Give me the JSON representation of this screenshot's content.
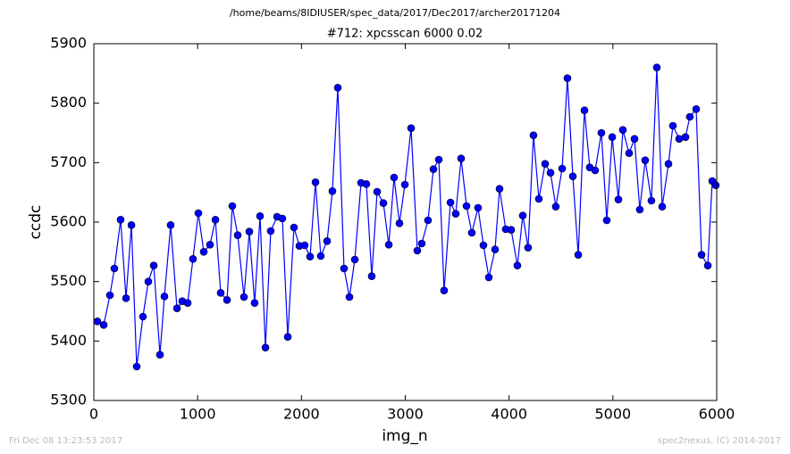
{
  "chart_data": {
    "type": "line",
    "suptitle": "/home/beams/8IDIUSER/spec_data/2017/Dec2017/archer20171204",
    "title": "#712: xpcsscan 6000 0.02",
    "xlabel": "img_n",
    "ylabel": "ccdc",
    "footer_left": "Fri Dec 08 13:23:53 2017",
    "footer_right": "spec2nexus, (C) 2014-2017",
    "xlim": [
      0,
      6000
    ],
    "xticks": [
      0,
      1000,
      2000,
      3000,
      4000,
      5000,
      6000
    ],
    "ylim": [
      5300,
      5900
    ],
    "yticks": [
      5300,
      5400,
      5500,
      5600,
      5700,
      5800,
      5900
    ],
    "color": "#0000ff",
    "x": [
      34,
      95,
      155,
      198,
      258,
      310,
      362,
      413,
      473,
      525,
      577,
      637,
      680,
      740,
      801,
      852,
      904,
      955,
      1007,
      1059,
      1119,
      1171,
      1222,
      1283,
      1334,
      1386,
      1446,
      1498,
      1549,
      1601,
      1653,
      1704,
      1765,
      1816,
      1868,
      1928,
      1980,
      2031,
      2083,
      2135,
      2186,
      2247,
      2298,
      2350,
      2410,
      2462,
      2514,
      2574,
      2625,
      2677,
      2729,
      2789,
      2841,
      2892,
      2944,
      2996,
      3056,
      3116,
      3159,
      3219,
      3271,
      3323,
      3374,
      3435,
      3486,
      3538,
      3590,
      3641,
      3701,
      3753,
      3805,
      3865,
      3908,
      3968,
      4020,
      4080,
      4132,
      4183,
      4235,
      4287,
      4347,
      4399,
      4450,
      4511,
      4562,
      4614,
      4666,
      4726,
      4777,
      4829,
      4889,
      4941,
      4993,
      5053,
      5096,
      5156,
      5208,
      5259,
      5311,
      5371,
      5423,
      5475,
      5535,
      5578,
      5638,
      5699,
      5741,
      5802,
      5854,
      5914,
      5957,
      5991
    ],
    "values": [
      5433,
      5427,
      5477,
      5522,
      5604,
      5472,
      5595,
      5357,
      5441,
      5500,
      5527,
      5377,
      5475,
      5595,
      5455,
      5467,
      5464,
      5538,
      5615,
      5550,
      5562,
      5604,
      5481,
      5469,
      5627,
      5578,
      5474,
      5584,
      5464,
      5610,
      5389,
      5585,
      5609,
      5606,
      5407,
      5591,
      5560,
      5561,
      5542,
      5667,
      5543,
      5568,
      5652,
      5826,
      5522,
      5474,
      5537,
      5666,
      5664,
      5509,
      5651,
      5632,
      5562,
      5675,
      5598,
      5663,
      5758,
      5552,
      5564,
      5603,
      5689,
      5705,
      5485,
      5633,
      5614,
      5707,
      5627,
      5582,
      5624,
      5561,
      5507,
      5554,
      5656,
      5588,
      5587,
      5527,
      5611,
      5557,
      5746,
      5639,
      5698,
      5683,
      5626,
      5690,
      5842,
      5677,
      5545,
      5788,
      5692,
      5687,
      5750,
      5603,
      5743,
      5638,
      5755,
      5716,
      5740,
      5621,
      5704,
      5636,
      5860,
      5626,
      5698,
      5762,
      5740,
      5743,
      5777,
      5790,
      5545,
      5527,
      5669,
      5662
    ]
  }
}
